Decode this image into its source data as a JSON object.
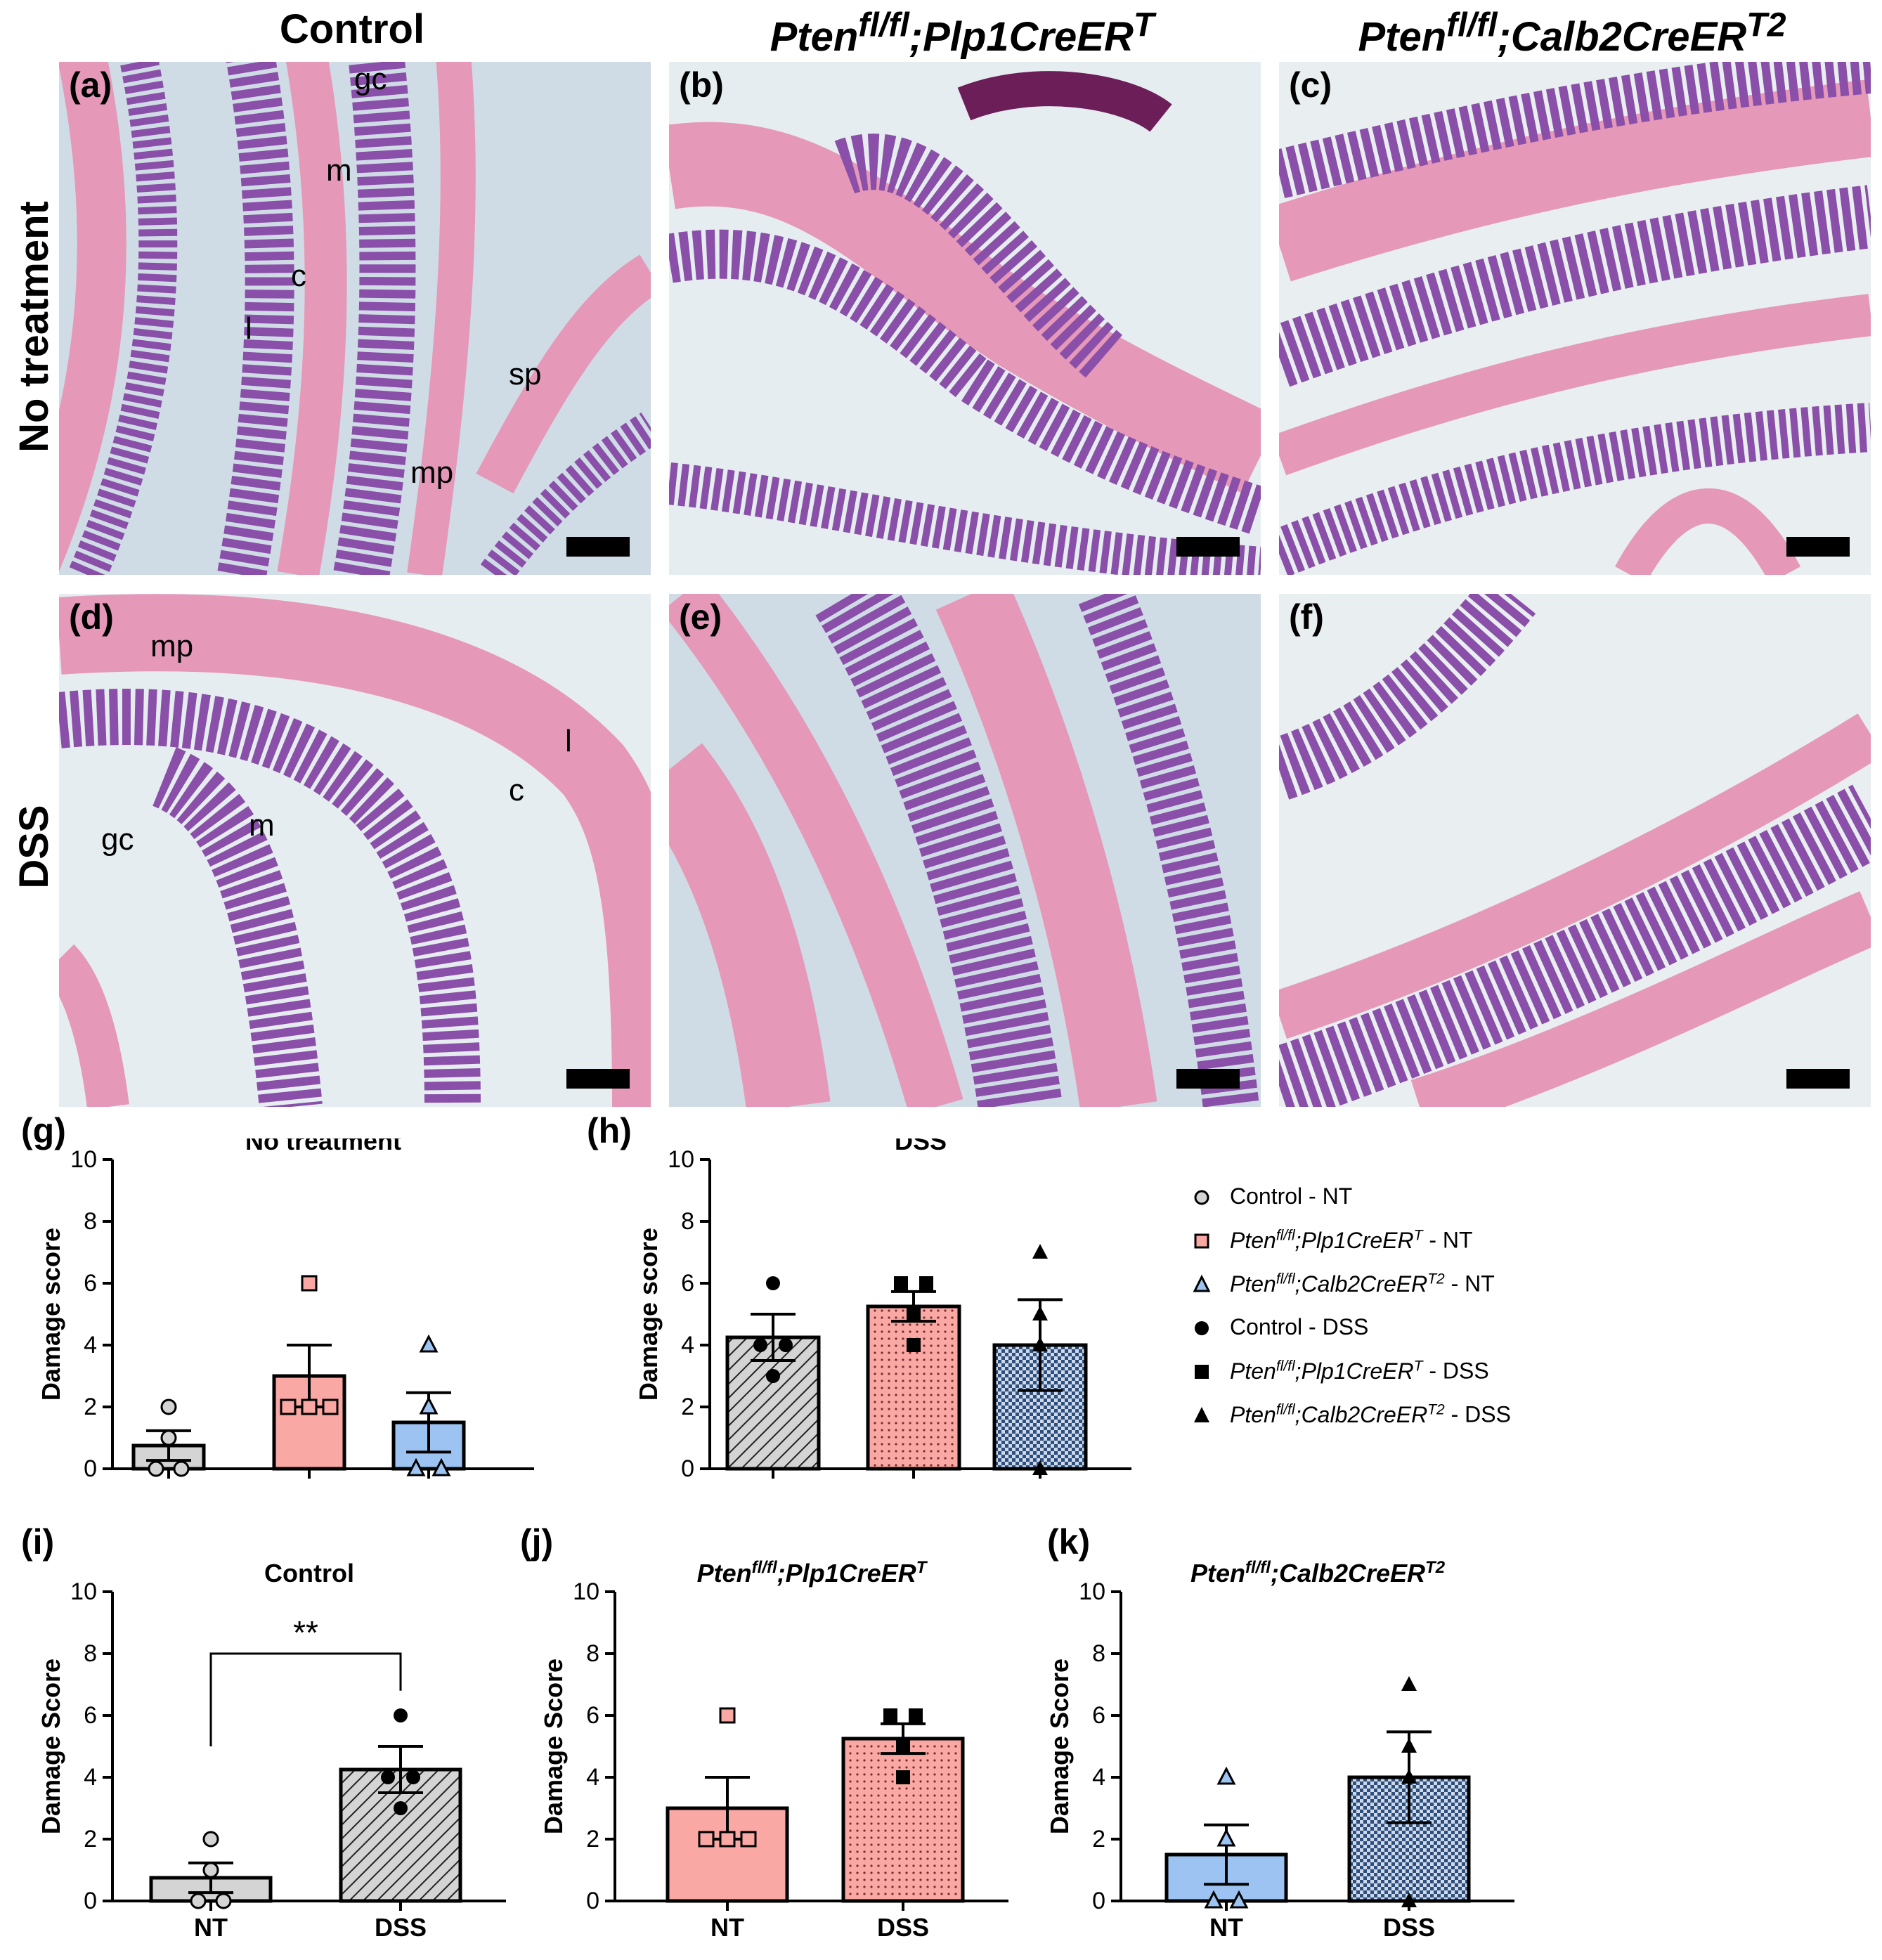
{
  "columns": {
    "control": "Control",
    "plp1": {
      "base": "Pten",
      "sup": "fl/fl",
      "mid": ";Plp1CreER",
      "sup2": "T"
    },
    "calb2": {
      "base": "Pten",
      "sup": "fl/fl",
      "mid": ";Calb2CreER",
      "sup2": "T2"
    }
  },
  "rows": {
    "no_treatment": "No treatment",
    "dss": "DSS"
  },
  "panels": {
    "a": "(a)",
    "b": "(b)",
    "c": "(c)",
    "d": "(d)",
    "e": "(e)",
    "f": "(f)"
  },
  "annotations_a": {
    "gc": "gc",
    "m": "m",
    "c": "c",
    "l": "l",
    "sp": "sp",
    "mp": "mp"
  },
  "annotations_d": {
    "mp": "mp",
    "gc": "gc",
    "m": "m",
    "c": "c",
    "l": "l"
  },
  "graph_labels": {
    "g": "(g)",
    "h": "(h)",
    "i": "(i)",
    "j": "(j)",
    "k": "(k)"
  },
  "legend": [
    {
      "marker": "circle-grey",
      "text": "Control - NT"
    },
    {
      "marker": "square-pink",
      "prefix": "Pten",
      "sup": "fl/fl",
      "mid": ";Plp1CreER",
      "sup2": "T",
      "suffix": " - NT"
    },
    {
      "marker": "triangle-blue",
      "prefix": "Pten",
      "sup": "fl/fl",
      "mid": ";Calb2CreER",
      "sup2": "T2",
      "suffix": " - NT"
    },
    {
      "marker": "circle-black",
      "text": "Control - DSS"
    },
    {
      "marker": "square-black",
      "prefix": "Pten",
      "sup": "fl/fl",
      "mid": ";Plp1CreER",
      "sup2": "T",
      "suffix": " - DSS"
    },
    {
      "marker": "triangle-black",
      "prefix": "Pten",
      "sup": "fl/fl",
      "mid": ";Calb2CreER",
      "sup2": "T2",
      "suffix": " - DSS"
    }
  ],
  "colors": {
    "control_nt": "#d4d4d4",
    "plp1": "#f9a8a4",
    "calb2_nt": "#9cc3f2",
    "calb2_dss": "#2c4f7e",
    "tissue_pink": "#e598b8",
    "tissue_purple": "#8a4fa8",
    "lumen": "#cfdce6"
  },
  "chart_data": [
    {
      "id": "g",
      "type": "bar",
      "title": "No treatment",
      "ylabel": "Damage score",
      "ylim": [
        0,
        10
      ],
      "yticks": [
        "0",
        "2",
        "4",
        "6",
        "8",
        "10"
      ],
      "categories": [
        "",
        "",
        ""
      ],
      "series": [
        {
          "values": [
            0.75,
            3.0,
            1.5
          ],
          "sem": [
            0.48,
            1.0,
            0.96
          ],
          "points": [
            [
              2,
              1,
              0,
              0
            ],
            [
              6,
              2,
              2,
              2
            ],
            [
              4,
              2,
              0,
              0
            ]
          ],
          "fills": [
            "control_nt",
            "plp1",
            "calb2_nt"
          ],
          "patterns": [
            "none",
            "none",
            "none"
          ],
          "markers": [
            "circle-open",
            "square-open",
            "triangle-open"
          ]
        }
      ]
    },
    {
      "id": "h",
      "type": "bar",
      "title": "DSS",
      "ylabel": "Damage score",
      "ylim": [
        0,
        10
      ],
      "yticks": [
        "0",
        "2",
        "4",
        "6",
        "8",
        "10"
      ],
      "categories": [
        "",
        "",
        ""
      ],
      "series": [
        {
          "values": [
            4.25,
            5.25,
            4.0
          ],
          "sem": [
            0.75,
            0.48,
            1.47
          ],
          "points": [
            [
              6,
              4,
              4,
              3
            ],
            [
              6,
              6,
              5,
              4
            ],
            [
              7,
              5,
              4,
              0
            ]
          ],
          "fills": [
            "control_nt",
            "plp1",
            "calb2_dss"
          ],
          "patterns": [
            "hatch",
            "dots",
            "check"
          ],
          "markers": [
            "circle",
            "square",
            "triangle"
          ]
        }
      ]
    },
    {
      "id": "i",
      "type": "bar",
      "title": "Control",
      "ylabel": "Damage Score",
      "ylim": [
        0,
        10
      ],
      "yticks": [
        "0",
        "2",
        "4",
        "6",
        "8",
        "10"
      ],
      "categories": [
        "NT",
        "DSS"
      ],
      "significance": "**",
      "series": [
        {
          "values": [
            0.75,
            4.25
          ],
          "sem": [
            0.48,
            0.75
          ],
          "points": [
            [
              2,
              1,
              0,
              0
            ],
            [
              6,
              4,
              4,
              3
            ]
          ],
          "fills": [
            "control_nt",
            "control_nt"
          ],
          "patterns": [
            "none",
            "hatch"
          ],
          "markers": [
            "circle-open",
            "circle"
          ]
        }
      ]
    },
    {
      "id": "j",
      "type": "bar",
      "title": {
        "base": "Pten",
        "sup": "fl/fl",
        "mid": ";Plp1CreER",
        "sup2": "T"
      },
      "ylabel": "Damage Score",
      "ylim": [
        0,
        10
      ],
      "yticks": [
        "0",
        "2",
        "4",
        "6",
        "8",
        "10"
      ],
      "categories": [
        "NT",
        "DSS"
      ],
      "series": [
        {
          "values": [
            3.0,
            5.25
          ],
          "sem": [
            1.0,
            0.48
          ],
          "points": [
            [
              6,
              2,
              2,
              2
            ],
            [
              6,
              6,
              5,
              4
            ]
          ],
          "fills": [
            "plp1",
            "plp1"
          ],
          "patterns": [
            "none",
            "dots"
          ],
          "markers": [
            "square-open",
            "square"
          ]
        }
      ]
    },
    {
      "id": "k",
      "type": "bar",
      "title": {
        "base": "Pten",
        "sup": "fl/fl",
        "mid": ";Calb2CreER",
        "sup2": "T2"
      },
      "ylabel": "Damage Score",
      "ylim": [
        0,
        10
      ],
      "yticks": [
        "0",
        "2",
        "4",
        "6",
        "8",
        "10"
      ],
      "categories": [
        "NT",
        "DSS"
      ],
      "series": [
        {
          "values": [
            1.5,
            4.0
          ],
          "sem": [
            0.96,
            1.47
          ],
          "points": [
            [
              4,
              2,
              0,
              0
            ],
            [
              7,
              5,
              4,
              0
            ]
          ],
          "fills": [
            "calb2_nt",
            "calb2_dss"
          ],
          "patterns": [
            "none",
            "check"
          ],
          "markers": [
            "triangle-open",
            "triangle"
          ]
        }
      ]
    }
  ]
}
